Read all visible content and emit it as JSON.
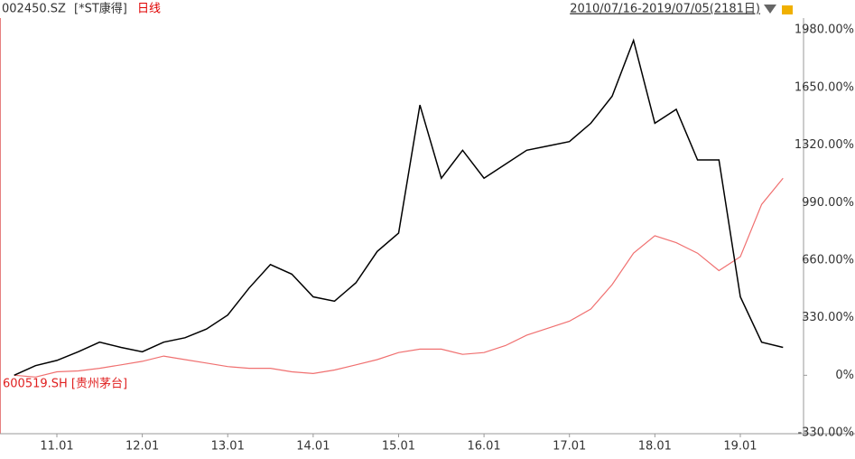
{
  "chart_data": {
    "type": "line",
    "code": "002450.SZ",
    "stock_name": "[*ST康得]",
    "period": "日线",
    "range": "2010/07/16-2019/07/05(2181日)",
    "x": [
      null,
      null,
      "11.01",
      null,
      null,
      null,
      "12.01",
      null,
      null,
      null,
      "13.01",
      null,
      null,
      null,
      "14.01",
      null,
      null,
      null,
      "15.01",
      null,
      null,
      null,
      "16.01",
      null,
      null,
      null,
      "17.01",
      null,
      null,
      null,
      "18.01",
      null,
      null,
      null,
      "19.01",
      null,
      null
    ],
    "series": [
      {
        "name": "002450.SZ",
        "color": "#000000",
        "values": [
          0,
          55,
          85,
          135,
          190,
          160,
          135,
          190,
          215,
          265,
          345,
          500,
          635,
          580,
          450,
          425,
          530,
          710,
          815,
          1550,
          1130,
          1290,
          1130,
          1210,
          1290,
          1315,
          1340,
          1445,
          1600,
          1920,
          1445,
          1525,
          1235,
          1235,
          450,
          190,
          160
        ]
      },
      {
        "name": "600519.SH [贵州茅台]",
        "color": "#f07070",
        "values": [
          0,
          -10,
          20,
          25,
          40,
          60,
          80,
          110,
          90,
          70,
          50,
          40,
          40,
          20,
          10,
          30,
          60,
          90,
          130,
          150,
          150,
          120,
          130,
          170,
          230,
          270,
          310,
          380,
          520,
          700,
          800,
          760,
          700,
          600,
          680,
          980,
          1130
        ]
      }
    ],
    "ylim": [
      -335,
      2100
    ],
    "yticks": [
      {
        "value": 1980,
        "label": "1980.00%"
      },
      {
        "value": 1650,
        "label": "1650.00%"
      },
      {
        "value": 1320,
        "label": "1320.00%"
      },
      {
        "value": 990,
        "label": "990.00%"
      },
      {
        "value": 660,
        "label": "660.00%"
      },
      {
        "value": 330,
        "label": "330.00%"
      },
      {
        "value": 0,
        "label": "0%"
      },
      {
        "value": -330,
        "label": "-330.00%"
      }
    ]
  }
}
